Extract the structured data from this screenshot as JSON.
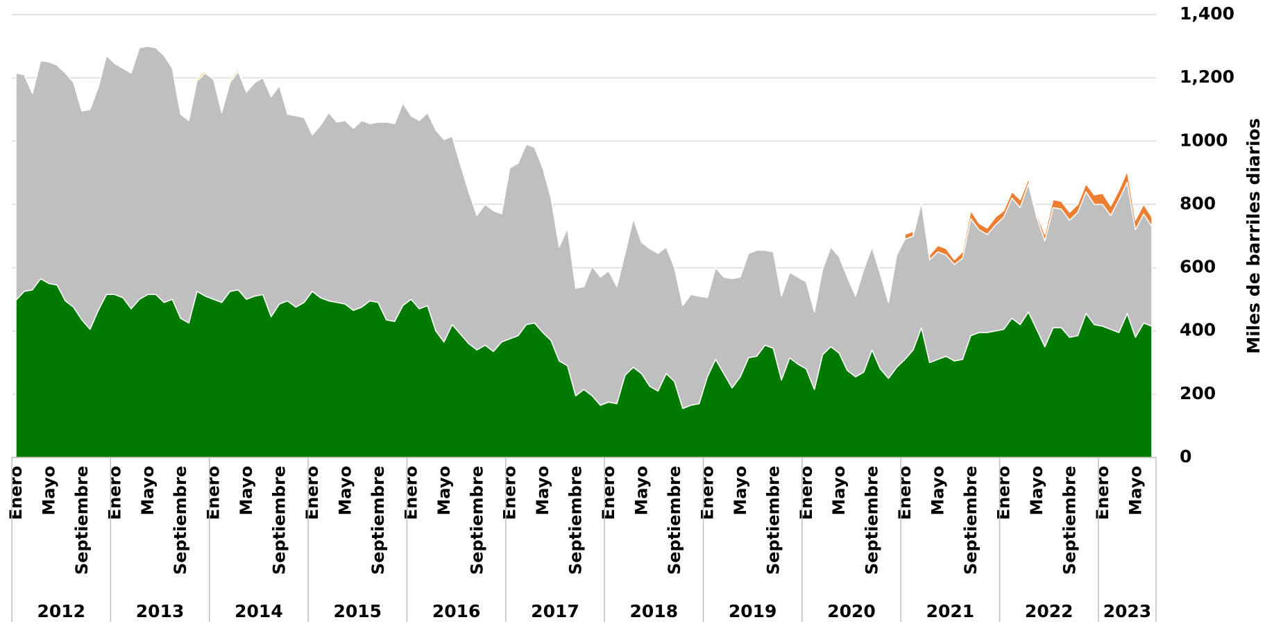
{
  "chart_data": {
    "type": "stacked-area",
    "y_label": "Miles de barriles diarios",
    "ylim": [
      0,
      1400
    ],
    "yticks": [
      0,
      200,
      400,
      600,
      800,
      1000,
      {
        "value": 1200,
        "label": "1,200"
      },
      {
        "value": 1400,
        "label": "1,400"
      }
    ],
    "grid": true,
    "y_axis_side": "right",
    "years": [
      "2012",
      "2013",
      "2014",
      "2015",
      "2016",
      "2017",
      "2018",
      "2019",
      "2020",
      "2021",
      "2022",
      "2023"
    ],
    "categories": [
      "Enero",
      null,
      null,
      null,
      "Mayo",
      null,
      null,
      null,
      "Septiembre",
      null,
      null,
      null,
      "Enero",
      null,
      null,
      null,
      "Mayo",
      null,
      null,
      null,
      "Septiembre",
      null,
      null,
      null,
      "Enero",
      null,
      null,
      null,
      "Mayo",
      null,
      null,
      null,
      "Septiembre",
      null,
      null,
      null,
      "Enero",
      null,
      null,
      null,
      "Mayo",
      null,
      null,
      null,
      "Septiembre",
      null,
      null,
      null,
      "Enero",
      null,
      null,
      null,
      "Mayo",
      null,
      null,
      null,
      "Septiembre",
      null,
      null,
      null,
      "Enero",
      null,
      null,
      null,
      "Mayo",
      null,
      null,
      null,
      "Septiembre",
      null,
      null,
      null,
      "Enero",
      null,
      null,
      null,
      "Mayo",
      null,
      null,
      null,
      "Septiembre",
      null,
      null,
      null,
      "Enero",
      null,
      null,
      null,
      "Mayo",
      null,
      null,
      null,
      "Septiembre",
      null,
      null,
      null,
      "Enero",
      null,
      null,
      null,
      "Mayo",
      null,
      null,
      null,
      "Septiembre",
      null,
      null,
      null,
      "Enero",
      null,
      null,
      null,
      "Mayo",
      null,
      null,
      null,
      "Septiembre",
      null,
      null,
      null,
      "Enero",
      null,
      null,
      null,
      "Mayo",
      null,
      null,
      null,
      "Septiembre",
      null,
      null,
      null,
      "Enero",
      null,
      null,
      null,
      "Mayo",
      null,
      null
    ],
    "series": [
      {
        "color": "#007a00",
        "values": [
          497,
          525,
          530,
          565,
          550,
          545,
          495,
          475,
          435,
          405,
          465,
          515,
          515,
          505,
          470,
          500,
          515,
          515,
          490,
          500,
          440,
          425,
          525,
          510,
          500,
          490,
          525,
          530,
          500,
          510,
          515,
          445,
          485,
          495,
          475,
          490,
          525,
          505,
          495,
          490,
          485,
          465,
          475,
          495,
          490,
          435,
          430,
          480,
          500,
          470,
          480,
          400,
          365,
          420,
          390,
          360,
          340,
          355,
          335,
          365,
          375,
          385,
          420,
          425,
          395,
          370,
          305,
          290,
          195,
          215,
          195,
          165,
          175,
          170,
          260,
          285,
          265,
          225,
          210,
          265,
          240,
          155,
          165,
          170,
          255,
          310,
          265,
          220,
          255,
          315,
          320,
          355,
          345,
          245,
          315,
          295,
          280,
          215,
          325,
          350,
          330,
          275,
          255,
          270,
          340,
          280,
          250,
          285,
          310,
          340,
          410,
          300,
          310,
          320,
          305,
          310,
          385,
          395,
          395,
          400,
          405,
          440,
          420,
          460,
          405,
          350,
          410,
          410,
          380,
          385,
          455,
          420,
          415,
          405,
          395,
          455,
          380,
          425,
          415
        ]
      },
      {
        "color": "#bfbfbf",
        "values": [
          718,
          685,
          620,
          690,
          700,
          695,
          720,
          710,
          660,
          695,
          705,
          755,
          730,
          725,
          745,
          795,
          785,
          780,
          780,
          730,
          645,
          640,
          665,
          705,
          695,
          600,
          660,
          690,
          655,
          675,
          685,
          695,
          690,
          590,
          605,
          585,
          495,
          545,
          595,
          570,
          580,
          575,
          590,
          560,
          570,
          625,
          625,
          640,
          580,
          595,
          610,
          635,
          640,
          595,
          535,
          480,
          425,
          445,
          445,
          405,
          540,
          545,
          570,
          555,
          520,
          450,
          360,
          435,
          340,
          325,
          410,
          405,
          415,
          370,
          385,
          470,
          415,
          435,
          435,
          400,
          360,
          325,
          350,
          340,
          250,
          290,
          305,
          345,
          315,
          330,
          335,
          300,
          305,
          265,
          270,
          275,
          275,
          245,
          270,
          315,
          305,
          295,
          255,
          325,
          325,
          300,
          240,
          355,
          380,
          360,
          395,
          325,
          340,
          320,
          305,
          320,
          370,
          325,
          310,
          335,
          355,
          380,
          370,
          405,
          355,
          335,
          380,
          375,
          370,
          390,
          385,
          380,
          385,
          360,
          420,
          415,
          340,
          345,
          315
        ]
      },
      {
        "color": "#ed7d31",
        "values": [
          null,
          null,
          null,
          null,
          null,
          null,
          null,
          null,
          null,
          null,
          null,
          null,
          null,
          null,
          null,
          null,
          null,
          null,
          null,
          null,
          null,
          null,
          null,
          null,
          null,
          null,
          null,
          null,
          null,
          null,
          null,
          null,
          null,
          null,
          null,
          null,
          null,
          null,
          null,
          null,
          null,
          null,
          null,
          null,
          null,
          null,
          null,
          null,
          null,
          null,
          null,
          null,
          null,
          null,
          null,
          null,
          null,
          null,
          null,
          null,
          null,
          null,
          null,
          null,
          null,
          null,
          null,
          null,
          null,
          null,
          null,
          null,
          null,
          null,
          null,
          null,
          null,
          null,
          null,
          null,
          null,
          null,
          null,
          null,
          null,
          null,
          null,
          null,
          null,
          null,
          null,
          null,
          null,
          null,
          null,
          null,
          null,
          null,
          null,
          null,
          null,
          null,
          null,
          null,
          null,
          null,
          null,
          null,
          15,
          15,
          null,
          15,
          20,
          20,
          15,
          20,
          25,
          20,
          20,
          25,
          20,
          20,
          25,
          15,
          10,
          20,
          25,
          25,
          25,
          25,
          25,
          30,
          35,
          30,
          30,
          35,
          30,
          30,
          30
        ]
      },
      {
        "color": "#ffd966",
        "values": [
          null,
          null,
          null,
          null,
          null,
          null,
          null,
          null,
          null,
          null,
          null,
          null,
          null,
          null,
          null,
          null,
          null,
          null,
          null,
          null,
          null,
          null,
          8,
          8,
          null,
          null,
          8,
          8,
          8,
          null,
          null,
          null,
          null,
          null,
          null,
          null,
          null,
          null,
          null,
          null,
          null,
          null,
          null,
          null,
          null,
          null,
          null,
          null,
          null,
          null,
          null,
          null,
          null,
          null,
          null,
          null,
          null,
          null,
          null,
          null,
          null,
          null,
          null,
          null,
          null,
          null,
          null,
          null,
          null,
          null,
          null,
          null,
          null,
          null,
          null,
          null,
          null,
          null,
          null,
          null,
          null,
          null,
          null,
          null,
          null,
          null,
          null,
          null,
          null,
          null,
          null,
          null,
          null,
          null,
          null,
          null,
          null,
          null,
          null,
          null,
          null,
          null,
          null,
          null,
          null,
          null,
          null,
          null,
          null,
          null,
          null,
          null,
          null,
          null,
          null,
          null,
          null,
          null,
          null,
          null,
          null,
          null,
          null,
          null,
          null,
          null,
          null,
          null,
          null,
          null,
          null,
          null,
          null,
          null,
          null,
          null,
          null,
          null,
          null
        ]
      }
    ]
  }
}
